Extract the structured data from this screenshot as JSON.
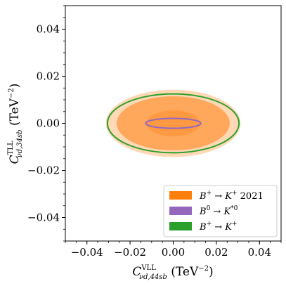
{
  "chart_data": {
    "type": "contour",
    "title": "",
    "xlabel": {
      "main": "C",
      "sup": "VLL",
      "sub": "νd,44sb",
      "unit": " (TeV",
      "unit_sup": "−2",
      "unit_close": ")"
    },
    "ylabel": {
      "main": "C",
      "sup": "TLL",
      "sub": "νd,34sb",
      "unit": " (TeV",
      "unit_sup": "−2",
      "unit_close": ")"
    },
    "xlim": [
      -0.05,
      0.05
    ],
    "ylim": [
      -0.05,
      0.05
    ],
    "x_ticks": [
      -0.04,
      -0.02,
      0.0,
      0.02,
      0.04
    ],
    "x_tick_labels": [
      "−0.04",
      "−0.02",
      "0.00",
      "0.02",
      "0.04"
    ],
    "y_ticks": [
      -0.04,
      -0.02,
      0.0,
      0.02,
      0.04
    ],
    "y_tick_labels": [
      "−0.04",
      "−0.02",
      "0.00",
      "0.02",
      "0.04"
    ],
    "grid": false,
    "legend_position": "lower-right",
    "regions": [
      {
        "name": "B⁺ → K⁺ 2021",
        "color": "#ff7f0e",
        "kind": "filled-ellipse-bands",
        "center": [
          0.0,
          0.0
        ],
        "bands": [
          {
            "rx": 0.0312,
            "ry": 0.0143,
            "opacity": 0.3
          },
          {
            "rx": 0.0262,
            "ry": 0.0115,
            "opacity": 0.55
          },
          {
            "rx": 0.0125,
            "ry": 0.0055,
            "opacity": 0.3
          }
        ]
      },
      {
        "name": "B⁰ → K*⁰",
        "color": "#9467bd",
        "kind": "ellipse-outline",
        "center": [
          0.0,
          0.0
        ],
        "rx": 0.0128,
        "ry": 0.0021
      },
      {
        "name": "B⁺ → K⁺",
        "color": "#2ca02c",
        "kind": "ellipse-outline",
        "center": [
          0.0,
          0.0
        ],
        "rx": 0.0305,
        "ry": 0.0125
      }
    ],
    "legend": [
      {
        "label_main": "B",
        "label_sup": "+",
        "label_arrow": " → K",
        "label_sup2": "+",
        "label_tail": " 2021",
        "color": "#ff7f0e"
      },
      {
        "label_main": "B",
        "label_sup": "0",
        "label_arrow": " → K",
        "label_sup2": "*0",
        "label_tail": "",
        "color": "#9467bd"
      },
      {
        "label_main": "B",
        "label_sup": "+",
        "label_arrow": " → K",
        "label_sup2": "+",
        "label_tail": "",
        "color": "#2ca02c"
      }
    ]
  }
}
